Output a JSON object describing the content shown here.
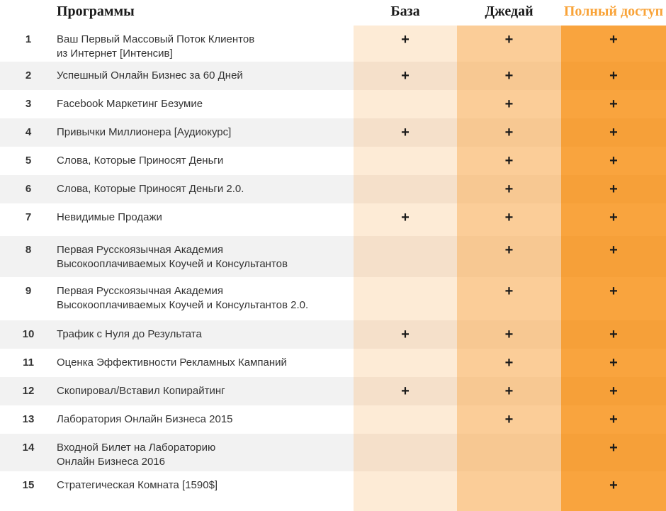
{
  "table": {
    "header": {
      "programs_label": "Программы",
      "tier_baza": "База",
      "tier_jedi": "Джедай",
      "tier_full": "Полный доступ"
    },
    "plus_symbol": "+",
    "rows": [
      {
        "num": "1",
        "name": "Ваш Первый Массовый Поток Клиентов\nиз Интернет [Интенсив]",
        "baza": true,
        "jedi": true,
        "full": true
      },
      {
        "num": "2",
        "name": "Успешный Онлайн Бизнес за 60 Дней",
        "baza": true,
        "jedi": true,
        "full": true
      },
      {
        "num": "3",
        "name": "Facebook Маркетинг Безумие",
        "baza": false,
        "jedi": true,
        "full": true
      },
      {
        "num": "4",
        "name": "Привычки Миллионера [Аудиокурс]",
        "baza": true,
        "jedi": true,
        "full": true
      },
      {
        "num": "5",
        "name": "Слова, Которые Приносят Деньги",
        "baza": false,
        "jedi": true,
        "full": true
      },
      {
        "num": "6",
        "name": "Слова, Которые Приносят Деньги 2.0.",
        "baza": false,
        "jedi": true,
        "full": true
      },
      {
        "num": "7",
        "name": "Невидимые Продажи",
        "baza": true,
        "jedi": true,
        "full": true
      },
      {
        "num": "8",
        "name": "Первая Русскоязычная Академия\nВысокооплачиваемых Коучей и Консультантов",
        "baza": false,
        "jedi": true,
        "full": true
      },
      {
        "num": "9",
        "name": "Первая Русскоязычная Академия\nВысокооплачиваемых Коучей и Консультантов 2.0.",
        "baza": false,
        "jedi": true,
        "full": true
      },
      {
        "num": "10",
        "name": "Трафик с Нуля до Результата",
        "baza": true,
        "jedi": true,
        "full": true
      },
      {
        "num": "11",
        "name": "Оценка Эффективности Рекламных Кампаний",
        "baza": false,
        "jedi": true,
        "full": true
      },
      {
        "num": "12",
        "name": "Скопировал/Вставил Копирайтинг",
        "baza": true,
        "jedi": true,
        "full": true
      },
      {
        "num": "13",
        "name": "Лаборатория Онлайн Бизнеса 2015",
        "baza": false,
        "jedi": true,
        "full": true
      },
      {
        "num": "14",
        "name": "Входной Билет на Лабораторию\nОнлайн Бизнеса 2016",
        "baza": false,
        "jedi": false,
        "full": true
      },
      {
        "num": "15",
        "name": "Стратегическая Комната [1590$]",
        "baza": false,
        "jedi": false,
        "full": true
      }
    ]
  },
  "colors": {
    "header_text": "#1a1a1a",
    "header_accent": "#f9a338",
    "row_text": "#333333",
    "plus_color": "#1a1a1a",
    "stripe_gray": "#f2f2f2",
    "baza_light": "#fdebd6",
    "baza_dark": "#f5e0ca",
    "jedi_light": "#fbcd98",
    "jedi_dark": "#f7c892",
    "full_light": "#f9a43e",
    "full_dark": "#f6a039"
  }
}
